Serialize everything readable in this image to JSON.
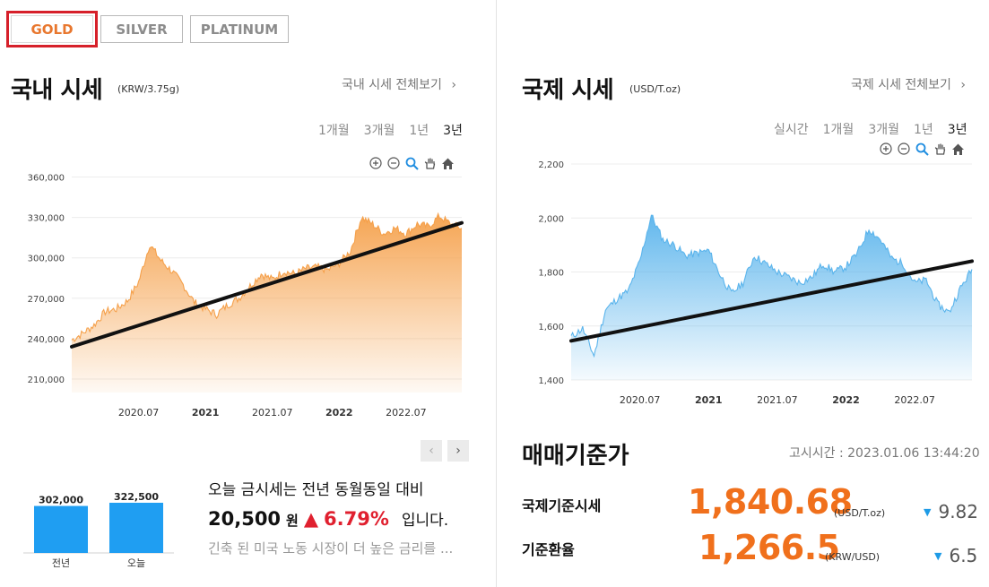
{
  "tabs": [
    {
      "label": "GOLD",
      "active": true
    },
    {
      "label": "SILVER",
      "active": false
    },
    {
      "label": "PLATINUM",
      "active": false
    }
  ],
  "domestic": {
    "title": "국내 시세",
    "unit": "(KRW/3.75g)",
    "more_link": "국내 시세 전체보기",
    "periods": [
      "1개월",
      "3개월",
      "1년",
      "3년"
    ],
    "selected_period": "3년",
    "tool_icons": [
      "zoom-in-icon",
      "zoom-out-icon",
      "magnifier-icon",
      "hand-pan-icon",
      "home-icon"
    ]
  },
  "international": {
    "title": "국제 시세",
    "unit": "(USD/T.oz)",
    "more_link": "국제 시세 전체보기",
    "periods": [
      "실시간",
      "1개월",
      "3개월",
      "1년",
      "3년"
    ],
    "selected_period": "3년",
    "tool_icons": [
      "zoom-in-icon",
      "zoom-out-icon",
      "magnifier-icon",
      "hand-pan-icon",
      "home-icon"
    ]
  },
  "chart_data": [
    {
      "type": "area",
      "title": "국내 시세",
      "ylim": [
        200000,
        365000
      ],
      "yticks": [
        "210,000",
        "240,000",
        "270,000",
        "300,000",
        "330,000",
        "360,000"
      ],
      "xticks": [
        "2020.07",
        "2021",
        "2021.07",
        "2022",
        "2022.07"
      ],
      "bold_xticks": [
        "2021",
        "2022"
      ],
      "color": "#f5a04a",
      "x_range": [
        "2020-01",
        "2022-12"
      ],
      "series": [
        {
          "x": [
            "2020-01",
            "2020-02",
            "2020-03",
            "2020-04",
            "2020-05",
            "2020-06",
            "2020-07",
            "2020-08",
            "2020-09",
            "2020-10",
            "2020-11",
            "2020-12",
            "2021-01",
            "2021-02",
            "2021-03",
            "2021-04",
            "2021-05",
            "2021-06",
            "2021-07",
            "2021-08",
            "2021-09",
            "2021-10",
            "2021-11",
            "2021-12",
            "2022-01",
            "2022-02",
            "2022-03",
            "2022-04",
            "2022-05",
            "2022-06",
            "2022-07",
            "2022-08",
            "2022-09",
            "2022-10",
            "2022-11",
            "2022-12"
          ],
          "values": [
            239000,
            244000,
            250000,
            260000,
            262000,
            268000,
            282000,
            310000,
            298000,
            290000,
            280000,
            267000,
            262000,
            258000,
            265000,
            270000,
            279000,
            288000,
            284000,
            290000,
            288000,
            292000,
            293000,
            291000,
            296000,
            305000,
            330000,
            325000,
            318000,
            322000,
            318000,
            325000,
            323000,
            331000,
            325000,
            322000
          ]
        }
      ],
      "trend_line": {
        "start": 234000,
        "end": 326000
      }
    },
    {
      "type": "area",
      "title": "국제 시세",
      "ylim": [
        1400,
        2200
      ],
      "yticks": [
        "1,400",
        "1,600",
        "1,800",
        "2,000",
        "2,200"
      ],
      "xticks": [
        "2020.07",
        "2021",
        "2021.07",
        "2022",
        "2022.07"
      ],
      "bold_xticks": [
        "2021",
        "2022"
      ],
      "color": "#5ab4ec",
      "x_range": [
        "2020-01",
        "2022-12"
      ],
      "series": [
        {
          "x": [
            "2020-01",
            "2020-02",
            "2020-03",
            "2020-04",
            "2020-05",
            "2020-06",
            "2020-07",
            "2020-08",
            "2020-09",
            "2020-10",
            "2020-11",
            "2020-12",
            "2021-01",
            "2021-02",
            "2021-03",
            "2021-04",
            "2021-05",
            "2021-06",
            "2021-07",
            "2021-08",
            "2021-09",
            "2021-10",
            "2021-11",
            "2021-12",
            "2022-01",
            "2022-02",
            "2022-03",
            "2022-04",
            "2022-05",
            "2022-06",
            "2022-07",
            "2022-08",
            "2022-09",
            "2022-10",
            "2022-11",
            "2022-12"
          ],
          "values": [
            1560,
            1590,
            1490,
            1660,
            1700,
            1730,
            1840,
            2010,
            1920,
            1900,
            1860,
            1870,
            1880,
            1790,
            1720,
            1760,
            1860,
            1830,
            1800,
            1780,
            1760,
            1780,
            1830,
            1800,
            1820,
            1870,
            1960,
            1920,
            1850,
            1830,
            1760,
            1770,
            1680,
            1650,
            1740,
            1810
          ]
        }
      ],
      "trend_line": {
        "start": 1545,
        "end": 1840
      }
    },
    {
      "type": "bar",
      "categories": [
        "전년",
        "오늘"
      ],
      "values": [
        302000,
        322500
      ],
      "value_labels": [
        "302,000",
        "322,500"
      ],
      "color": "#1f9ef2"
    }
  ],
  "summary": {
    "line1": "오늘 금시세는 전년 동월동일 대비",
    "amount": "20,500",
    "won": "원",
    "arrow": "▲",
    "pct": "6.79%",
    "tail": "입니다.",
    "news": "긴축 된 미국 노동 시장이 더 높은 금리를 ..."
  },
  "pager": {
    "prev": "‹",
    "next": "›"
  },
  "base_rates": {
    "title": "매매기준가",
    "notice": "고시시간 : 2023.01.06 13:44:20",
    "rows": [
      {
        "label": "국제기준시세",
        "value": "1,840.68",
        "unit": "(USD/T.oz)",
        "change": "9.82",
        "arrow": "▼"
      },
      {
        "label": "기준환율",
        "value": "1,266.5",
        "unit": "(KRW/USD)",
        "change": "6.5",
        "arrow": "▼"
      }
    ]
  }
}
